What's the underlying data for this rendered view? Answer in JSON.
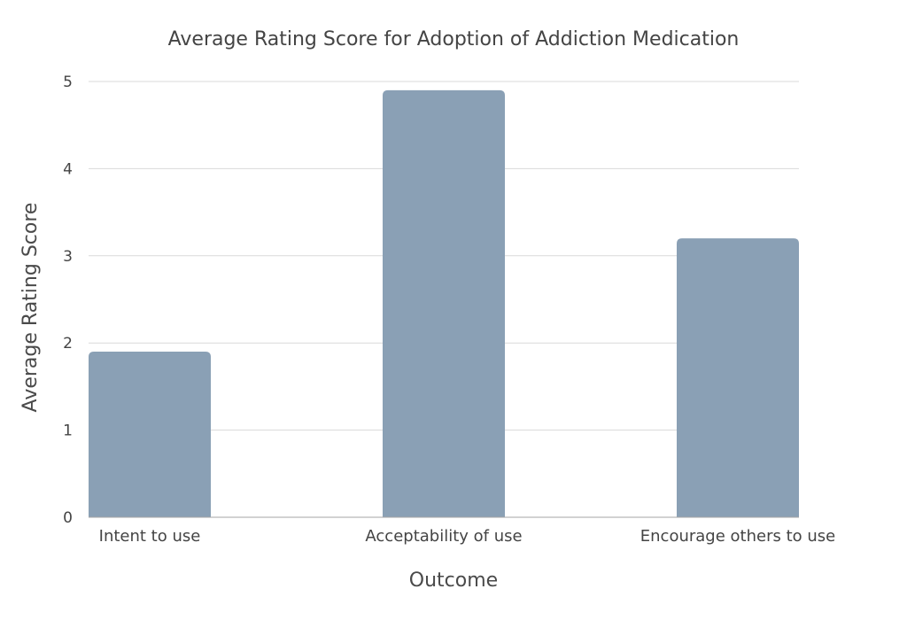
{
  "chart_data": {
    "type": "bar",
    "title": "Average Rating Score for Adoption of Addiction Medication",
    "xlabel": "Outcome",
    "ylabel": "Average Rating Score",
    "categories": [
      "Intent to use",
      "Acceptability of use",
      "Encourage others to use"
    ],
    "values": [
      1.9,
      4.9,
      3.2
    ],
    "ylim": [
      0,
      5
    ],
    "yticks": [
      "0",
      "1",
      "2",
      "3",
      "4",
      "5"
    ],
    "grid": true,
    "legend": "none",
    "colors": {
      "bar": "#8aa0b5",
      "grid": "#d9d9d9",
      "baseline": "#a6a6a6",
      "text": "#444444"
    }
  }
}
